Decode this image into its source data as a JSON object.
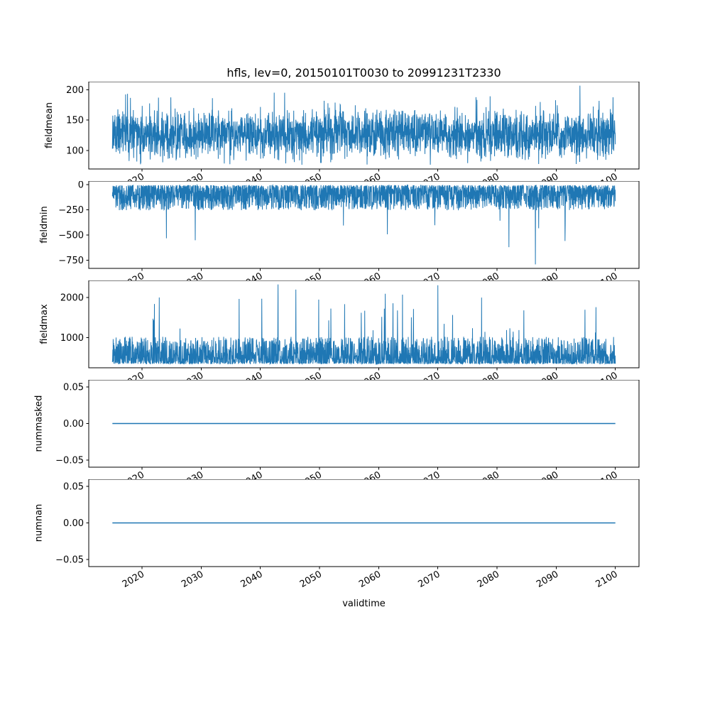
{
  "figure": {
    "title": "hfls, lev=0, 20150101T0030 to 20991231T2330",
    "xlabel": "validtime",
    "variable": "hfls",
    "level": "lev=0",
    "time_range": {
      "start": "20150101T0030",
      "end": "20991231T2330"
    },
    "line_color": "#1f77b4",
    "background_color": "#ffffff"
  },
  "chart_data": [
    {
      "type": "line",
      "name": "fieldmean",
      "ylabel": "fieldmean",
      "color": "#1f77b4",
      "line_width": 1,
      "x_start": 2015,
      "x_end": 2100,
      "xlim": [
        2011,
        2104
      ],
      "ylim": [
        69.4,
        213.6
      ],
      "xtick_values": [
        2020,
        2030,
        2040,
        2050,
        2060,
        2070,
        2080,
        2090,
        2100
      ],
      "xtick_labels": [
        "2020",
        "2030",
        "2040",
        "2050",
        "2060",
        "2070",
        "2080",
        "2090",
        "2100"
      ],
      "ytick_values": [
        100,
        150,
        200
      ],
      "ytick_labels": [
        "100",
        "150",
        "200"
      ],
      "n_points": 2600,
      "seed": 11,
      "signal": {
        "kind": "band",
        "base": 127,
        "amp": 46,
        "hi_prob": 0.012,
        "hi_base": 172,
        "hi_amp": 26,
        "lo_prob": 0.012,
        "lo_base": 88,
        "lo_amp": 12
      },
      "features": [
        {
          "x": 2094,
          "v": 207
        }
      ],
      "observed_range": [
        76,
        207
      ]
    },
    {
      "type": "line",
      "name": "fieldmin",
      "ylabel": "fieldmin",
      "color": "#1f77b4",
      "line_width": 1,
      "x_start": 2015,
      "x_end": 2100,
      "xlim": [
        2011,
        2104
      ],
      "ylim": [
        -833,
        37
      ],
      "xtick_values": [
        2020,
        2030,
        2040,
        2050,
        2060,
        2070,
        2080,
        2090,
        2100
      ],
      "xtick_labels": [
        "2020",
        "2030",
        "2040",
        "2050",
        "2060",
        "2070",
        "2080",
        "2090",
        "2100"
      ],
      "ytick_values": [
        0,
        -250,
        -500,
        -750
      ],
      "ytick_labels": [
        "0",
        "−250",
        "−500",
        "−750"
      ],
      "n_points": 2600,
      "seed": 22,
      "signal": {
        "kind": "neg",
        "base": -4,
        "amp": 250,
        "pow": 1.7,
        "deep_prob": 0.004,
        "deep_base": -300,
        "deep_amp": 260
      },
      "features": [
        {
          "x": 2029,
          "v": -553
        },
        {
          "x": 2082,
          "v": -622
        },
        {
          "x": 2086.5,
          "v": -793
        },
        {
          "x": 2091.5,
          "v": -560
        }
      ],
      "observed_range": [
        -793,
        -3
      ]
    },
    {
      "type": "line",
      "name": "fieldmax",
      "ylabel": "fieldmax",
      "color": "#1f77b4",
      "line_width": 1,
      "x_start": 2015,
      "x_end": 2100,
      "xlim": [
        2011,
        2104
      ],
      "ylim": [
        246,
        2429
      ],
      "xtick_values": [
        2020,
        2030,
        2040,
        2050,
        2060,
        2070,
        2080,
        2090,
        2100
      ],
      "xtick_labels": [
        "2020",
        "2030",
        "2040",
        "2050",
        "2060",
        "2070",
        "2080",
        "2090",
        "2100"
      ],
      "ytick_values": [
        1000,
        2000
      ],
      "ytick_labels": [
        "1000",
        "2000"
      ],
      "n_points": 2600,
      "seed": 33,
      "signal": {
        "kind": "pos",
        "base": 345,
        "amp": 680,
        "pow": 2.2,
        "spike_prob": 0.013,
        "spike_base": 1100,
        "spike_amp": 1000
      },
      "features": [
        {
          "x": 2043,
          "v": 2330
        },
        {
          "x": 2070,
          "v": 2310
        },
        {
          "x": 2046,
          "v": 2200
        }
      ],
      "observed_range": [
        345,
        2330
      ]
    },
    {
      "type": "line",
      "name": "nummasked",
      "ylabel": "nummasked",
      "color": "#1f77b4",
      "line_width": 1.5,
      "x_start": 2015,
      "x_end": 2100,
      "xlim": [
        2011,
        2104
      ],
      "ylim": [
        -0.06,
        0.06
      ],
      "xtick_values": [
        2020,
        2030,
        2040,
        2050,
        2060,
        2070,
        2080,
        2090,
        2100
      ],
      "xtick_labels": [
        "2020",
        "2030",
        "2040",
        "2050",
        "2060",
        "2070",
        "2080",
        "2090",
        "2100"
      ],
      "ytick_values": [
        0.05,
        0,
        -0.05
      ],
      "ytick_labels": [
        "0.05",
        "0.00",
        "−0.05"
      ],
      "n_points": 2,
      "seed": 44,
      "signal": {
        "kind": "flat",
        "value": 0
      },
      "features": [],
      "observed_range": [
        0,
        0
      ]
    },
    {
      "type": "line",
      "name": "numnan",
      "ylabel": "numnan",
      "color": "#1f77b4",
      "line_width": 1.5,
      "x_start": 2015,
      "x_end": 2100,
      "xlim": [
        2011,
        2104
      ],
      "ylim": [
        -0.06,
        0.06
      ],
      "xtick_values": [
        2020,
        2030,
        2040,
        2050,
        2060,
        2070,
        2080,
        2090,
        2100
      ],
      "xtick_labels": [
        "2020",
        "2030",
        "2040",
        "2050",
        "2060",
        "2070",
        "2080",
        "2090",
        "2100"
      ],
      "ytick_values": [
        0.05,
        0,
        -0.05
      ],
      "ytick_labels": [
        "0.05",
        "0.00",
        "−0.05"
      ],
      "n_points": 2,
      "seed": 55,
      "signal": {
        "kind": "flat",
        "value": 0
      },
      "features": [],
      "observed_range": [
        0,
        0
      ]
    }
  ]
}
